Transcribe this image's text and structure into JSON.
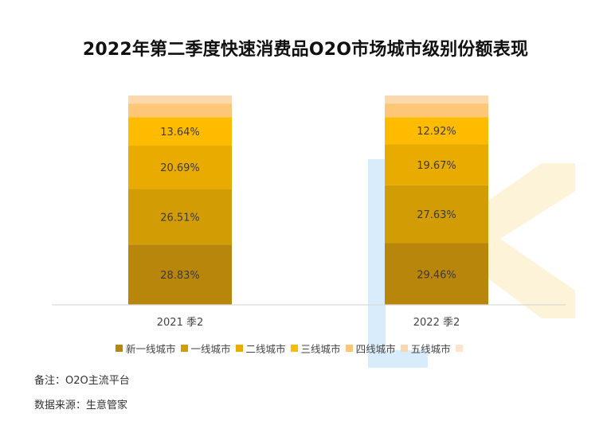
{
  "chart_data": {
    "type": "bar",
    "stacked": true,
    "title": "2022年第二季度快速消费品O2O市场城市级别份额表现",
    "categories": [
      "2021 季2",
      "2022 季2"
    ],
    "series": [
      {
        "name": "新一线城市",
        "color": "#b8860b",
        "values": [
          28.83,
          29.46
        ]
      },
      {
        "name": "一线城市",
        "color": "#d29c05",
        "values": [
          26.51,
          27.63
        ]
      },
      {
        "name": "二线城市",
        "color": "#e9ab00",
        "values": [
          20.69,
          19.67
        ]
      },
      {
        "name": "三线城市",
        "color": "#ffbb00",
        "values": [
          13.64,
          12.92
        ]
      },
      {
        "name": "四线城市",
        "color": "#fdc777",
        "values": [
          6.5,
          6.5
        ]
      },
      {
        "name": "五线城市",
        "color": "#fcd8ad",
        "values": [
          3.83,
          3.82
        ]
      }
    ],
    "data_labels": [
      [
        "28.83%",
        "29.46%"
      ],
      [
        "26.51%",
        "27.63%"
      ],
      [
        "20.69%",
        "19.67%"
      ],
      [
        "13.64%",
        "12.92%"
      ],
      [
        "",
        ""
      ],
      [
        "",
        ""
      ]
    ],
    "ylim": [
      0,
      100
    ],
    "grid": false,
    "legend_position": "bottom",
    "legend_trailing_color": "#fde4cc"
  },
  "footer": {
    "note": "备注：O2O主流平台",
    "source": "数据来源：生意管家"
  },
  "watermark": {
    "color_blue": "#d8ecfb",
    "color_yellow": "#fdf3d8"
  }
}
